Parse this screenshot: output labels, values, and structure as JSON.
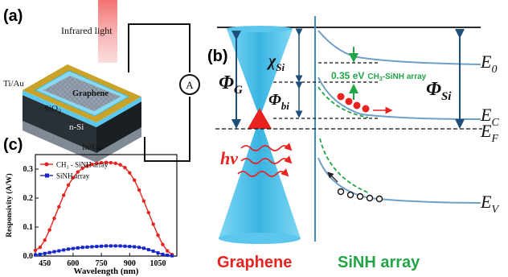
{
  "panel_a": {
    "label": "(a)",
    "infrared_label": "Infrared light",
    "graphene_label": "Graphene",
    "electrode_label": "Ti/Au",
    "oxide_label": "SiO",
    "oxide_sub": "2",
    "substrate_label": "n-Si",
    "back_contact_label": "In/Ga",
    "meter_symbol": "A"
  },
  "panel_b": {
    "label": "(b)",
    "phi_g": "Φ",
    "phi_g_sub": "G",
    "chi": "χ",
    "chi_sub": "Si",
    "phi_bi": "Φ",
    "phi_bi_sub": "bi",
    "phi_si": "Φ",
    "phi_si_sub": "Si",
    "e0": "E",
    "e0_sub": "0",
    "ec": "E",
    "ec_sub": "C",
    "ef": "E",
    "ef_sub": "F",
    "ev": "E",
    "ev_sub": "V",
    "annotation": "0.35 eV",
    "annotation_tail": "CH",
    "annotation_sub": "3",
    "annotation_end": "-SiNH array",
    "hv_label": "hν",
    "graphene_caption": "Graphene",
    "sinh_caption": "SiNH array"
  },
  "panel_c": {
    "label": "(c)",
    "colors": {
      "ch3": "#e8231f",
      "sinh": "#1726c9"
    }
  },
  "chart_data": {
    "type": "line",
    "xlabel": "Wavelength (nm)",
    "ylabel": "Responsivity (A/W)",
    "xlim": [
      400,
      1150
    ],
    "ylim": [
      0,
      0.35
    ],
    "xticks": [
      "450",
      "600",
      "750",
      "900",
      "1050"
    ],
    "yticks": [
      "0.0",
      "0.1",
      "0.2",
      "0.3"
    ],
    "legend_position": "top-left",
    "series": [
      {
        "name": "CH₃ - SiNH array",
        "color": "#e8231f",
        "marker": "circle",
        "x": [
          400,
          425,
          450,
          475,
          500,
          525,
          550,
          575,
          600,
          625,
          650,
          675,
          700,
          725,
          750,
          775,
          800,
          825,
          850,
          875,
          900,
          925,
          950,
          975,
          1000,
          1025,
          1050,
          1075,
          1100,
          1125
        ],
        "y": [
          0.02,
          0.03,
          0.055,
          0.09,
          0.13,
          0.17,
          0.21,
          0.245,
          0.27,
          0.29,
          0.303,
          0.31,
          0.316,
          0.32,
          0.322,
          0.323,
          0.322,
          0.32,
          0.315,
          0.305,
          0.287,
          0.262,
          0.228,
          0.19,
          0.15,
          0.11,
          0.072,
          0.04,
          0.018,
          0.005
        ]
      },
      {
        "name": "SiNH array",
        "color": "#1726c9",
        "marker": "square",
        "x": [
          400,
          425,
          450,
          475,
          500,
          525,
          550,
          575,
          600,
          625,
          650,
          675,
          700,
          725,
          750,
          775,
          800,
          825,
          850,
          875,
          900,
          925,
          950,
          975,
          1000,
          1025,
          1050,
          1075,
          1100,
          1125
        ],
        "y": [
          0.004,
          0.006,
          0.009,
          0.012,
          0.015,
          0.018,
          0.021,
          0.024,
          0.026,
          0.028,
          0.03,
          0.031,
          0.032,
          0.033,
          0.034,
          0.035,
          0.035,
          0.035,
          0.035,
          0.034,
          0.033,
          0.032,
          0.03,
          0.027,
          0.022,
          0.017,
          0.011,
          0.006,
          0.003,
          0.001
        ]
      }
    ]
  }
}
